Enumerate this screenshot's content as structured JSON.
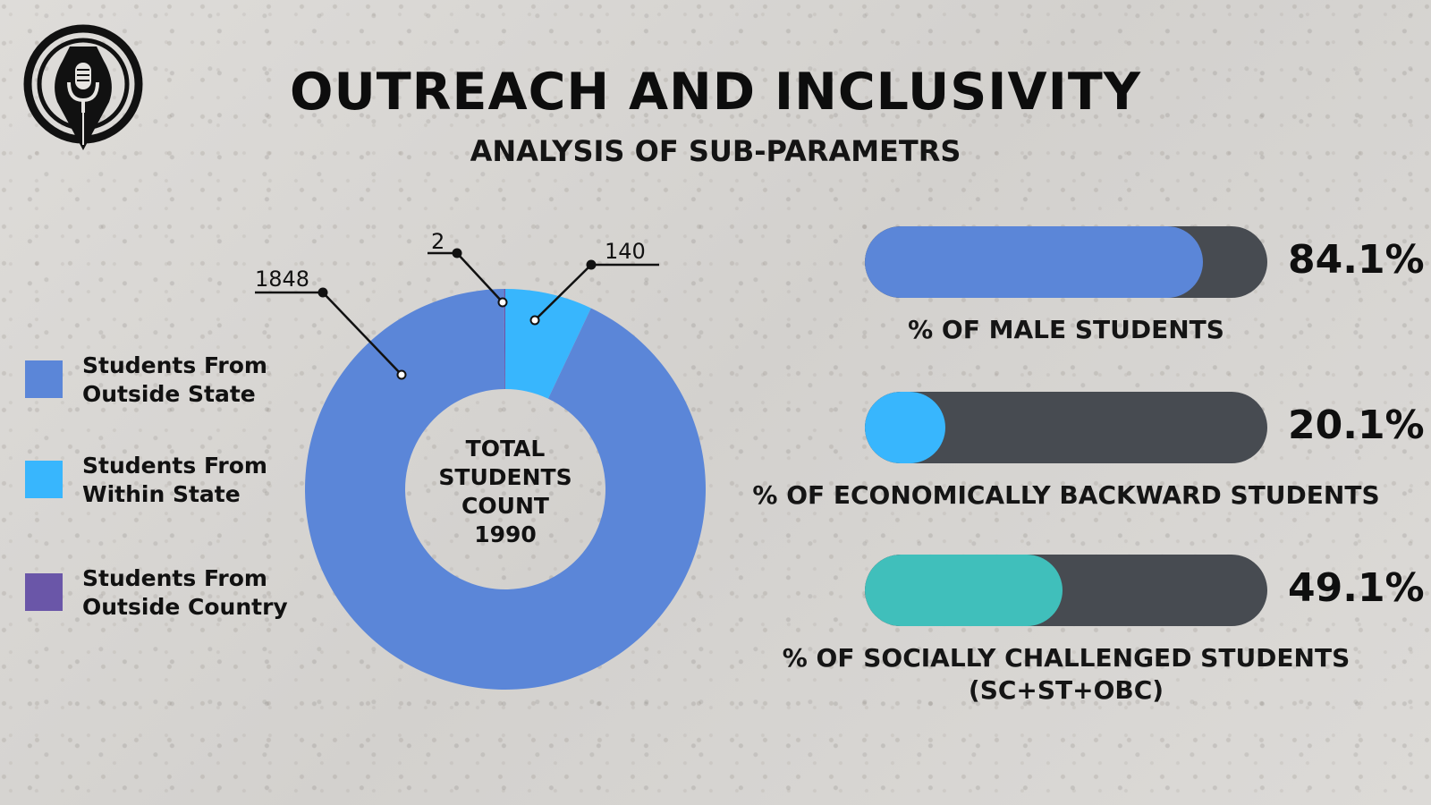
{
  "header": {
    "title": "OUTREACH AND INCLUSIVITY",
    "subtitle": "ANALYSIS OF SUB-PARAMETRS"
  },
  "logo": {
    "icon": "pen-nib-microphone-icon"
  },
  "chart_data": [
    {
      "type": "pie",
      "variant": "donut",
      "center_text": [
        "TOTAL",
        "STUDENTS",
        "COUNT",
        "1990"
      ],
      "total": 1990,
      "series": [
        {
          "name": "Students From Outside State",
          "value": 1848,
          "label": "1848",
          "color": "#5b86d8"
        },
        {
          "name": "Students From Within State",
          "value": 140,
          "label": "140",
          "color": "#38b6fd"
        },
        {
          "name": "Students From Outside Country",
          "value": 2,
          "label": "2",
          "color": "#6a56a8"
        }
      ],
      "legend": {
        "placement": "left",
        "items": [
          {
            "line1": "Students From",
            "line2": "Outside State",
            "color": "#5b86d8"
          },
          {
            "line1": "Students From",
            "line2": "Within State",
            "color": "#38b6fd"
          },
          {
            "line1": "Students From",
            "line2": "Outside Country",
            "color": "#6a56a8"
          }
        ]
      }
    },
    {
      "type": "bar",
      "orientation": "horizontal",
      "variant": "progress",
      "xlim": [
        0,
        100
      ],
      "track_color": "#474b51",
      "bars": [
        {
          "value": 84.1,
          "value_label": "84.1%",
          "caption": "% OF MALE STUDENTS",
          "caption2": "",
          "color": "#5b86d8"
        },
        {
          "value": 20.1,
          "value_label": "20.1%",
          "caption": "% OF ECONOMICALLY BACKWARD STUDENTS",
          "caption2": "",
          "color": "#38b6fd"
        },
        {
          "value": 49.1,
          "value_label": "49.1%",
          "caption": "% OF SOCIALLY CHALLENGED STUDENTS",
          "caption2": "(SC+ST+OBC)",
          "color": "#40bfbb"
        }
      ]
    }
  ]
}
